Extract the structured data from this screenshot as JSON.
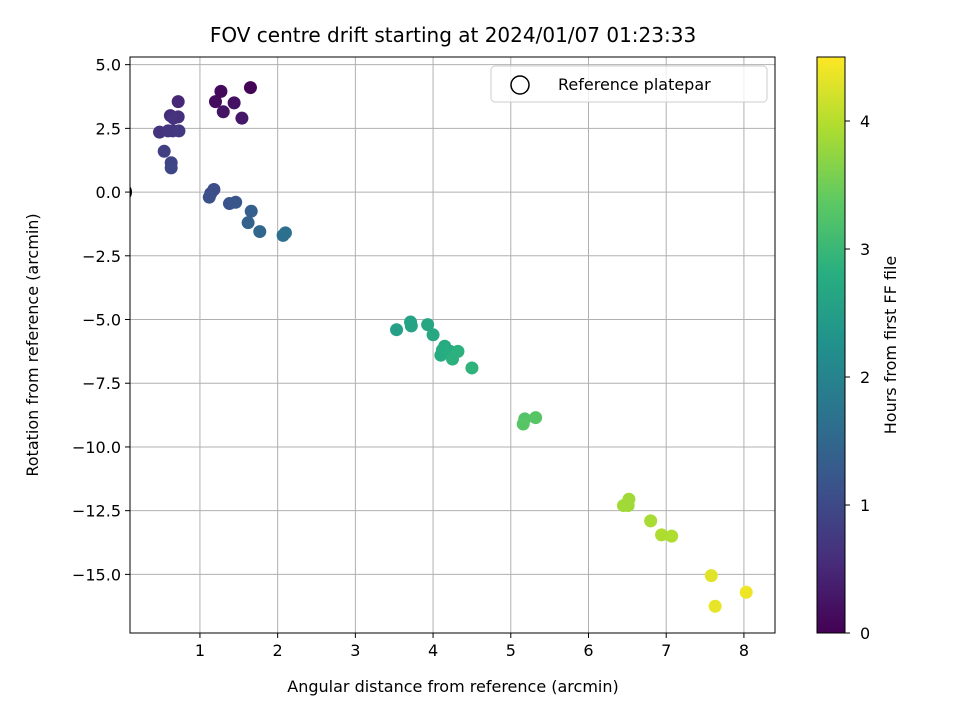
{
  "chart_data": {
    "type": "scatter",
    "title": "FOV centre drift starting at 2024/01/07 01:23:33",
    "xlabel": "Angular distance from reference (arcmin)",
    "ylabel": "Rotation from reference (arcmin)",
    "xlim": [
      0.1,
      8.4
    ],
    "ylim": [
      -17.3,
      5.3
    ],
    "xticks": [
      1,
      2,
      3,
      4,
      5,
      6,
      7,
      8
    ],
    "xtick_labels": [
      "1",
      "2",
      "3",
      "4",
      "5",
      "6",
      "7",
      "8"
    ],
    "yticks": [
      5.0,
      2.5,
      0.0,
      -2.5,
      -5.0,
      -7.5,
      -10.0,
      -12.5,
      -15.0
    ],
    "ytick_labels": [
      "5.0",
      "2.5",
      "0.0",
      "−2.5",
      "−5.0",
      "−7.5",
      "−10.0",
      "−12.5",
      "−15.0"
    ],
    "grid": true,
    "colormap": "viridis",
    "colorbar": {
      "label": "Hours from first FF file",
      "range": [
        0,
        4.5
      ],
      "ticks": [
        0,
        1,
        2,
        3,
        4
      ],
      "tick_labels": [
        "0",
        "1",
        "2",
        "3",
        "4"
      ]
    },
    "legend": {
      "position": "top-right",
      "entries": [
        {
          "label": "Reference platepar",
          "marker": "open-circle"
        }
      ]
    },
    "reference_point": {
      "x": 0.0,
      "y": 0.0
    },
    "points": [
      {
        "x": 1.65,
        "y": 4.1,
        "t": 0.05
      },
      {
        "x": 1.27,
        "y": 3.95,
        "t": 0.1
      },
      {
        "x": 1.2,
        "y": 3.55,
        "t": 0.15
      },
      {
        "x": 1.44,
        "y": 3.5,
        "t": 0.2
      },
      {
        "x": 1.3,
        "y": 3.15,
        "t": 0.25
      },
      {
        "x": 1.54,
        "y": 2.9,
        "t": 0.3
      },
      {
        "x": 0.72,
        "y": 3.55,
        "t": 0.5
      },
      {
        "x": 0.62,
        "y": 3.0,
        "t": 0.55
      },
      {
        "x": 0.72,
        "y": 2.95,
        "t": 0.6
      },
      {
        "x": 0.66,
        "y": 2.9,
        "t": 0.65
      },
      {
        "x": 0.48,
        "y": 2.35,
        "t": 0.65
      },
      {
        "x": 0.59,
        "y": 2.4,
        "t": 0.7
      },
      {
        "x": 0.65,
        "y": 2.4,
        "t": 0.7
      },
      {
        "x": 0.73,
        "y": 2.4,
        "t": 0.75
      },
      {
        "x": 0.54,
        "y": 1.6,
        "t": 0.85
      },
      {
        "x": 0.63,
        "y": 1.15,
        "t": 0.9
      },
      {
        "x": 0.63,
        "y": 0.95,
        "t": 0.95
      },
      {
        "x": 1.18,
        "y": 0.1,
        "t": 1.05
      },
      {
        "x": 1.14,
        "y": -0.05,
        "t": 1.05
      },
      {
        "x": 1.12,
        "y": -0.2,
        "t": 1.1
      },
      {
        "x": 1.38,
        "y": -0.45,
        "t": 1.15
      },
      {
        "x": 1.46,
        "y": -0.4,
        "t": 1.2
      },
      {
        "x": 1.66,
        "y": -0.75,
        "t": 1.35
      },
      {
        "x": 1.62,
        "y": -1.2,
        "t": 1.4
      },
      {
        "x": 1.77,
        "y": -1.55,
        "t": 1.5
      },
      {
        "x": 2.07,
        "y": -1.7,
        "t": 1.65
      },
      {
        "x": 2.1,
        "y": -1.6,
        "t": 1.65
      },
      {
        "x": 3.53,
        "y": -5.4,
        "t": 2.55
      },
      {
        "x": 3.71,
        "y": -5.1,
        "t": 2.6
      },
      {
        "x": 3.72,
        "y": -5.25,
        "t": 2.6
      },
      {
        "x": 3.93,
        "y": -5.2,
        "t": 2.65
      },
      {
        "x": 4.0,
        "y": -5.6,
        "t": 2.7
      },
      {
        "x": 4.15,
        "y": -6.05,
        "t": 2.75
      },
      {
        "x": 4.12,
        "y": -6.2,
        "t": 2.75
      },
      {
        "x": 4.1,
        "y": -6.4,
        "t": 2.75
      },
      {
        "x": 4.22,
        "y": -6.25,
        "t": 2.8
      },
      {
        "x": 4.32,
        "y": -6.25,
        "t": 2.85
      },
      {
        "x": 4.25,
        "y": -6.55,
        "t": 2.85
      },
      {
        "x": 4.5,
        "y": -6.9,
        "t": 2.9
      },
      {
        "x": 5.18,
        "y": -8.9,
        "t": 3.25
      },
      {
        "x": 5.16,
        "y": -9.1,
        "t": 3.3
      },
      {
        "x": 5.32,
        "y": -8.85,
        "t": 3.3
      },
      {
        "x": 6.52,
        "y": -12.05,
        "t": 3.85
      },
      {
        "x": 6.45,
        "y": -12.3,
        "t": 3.85
      },
      {
        "x": 6.51,
        "y": -12.3,
        "t": 3.85
      },
      {
        "x": 6.8,
        "y": -12.9,
        "t": 3.9
      },
      {
        "x": 6.94,
        "y": -13.45,
        "t": 3.95
      },
      {
        "x": 7.07,
        "y": -13.5,
        "t": 3.95
      },
      {
        "x": 7.58,
        "y": -15.05,
        "t": 4.3
      },
      {
        "x": 7.63,
        "y": -16.25,
        "t": 4.35
      },
      {
        "x": 8.03,
        "y": -15.7,
        "t": 4.4
      }
    ]
  }
}
